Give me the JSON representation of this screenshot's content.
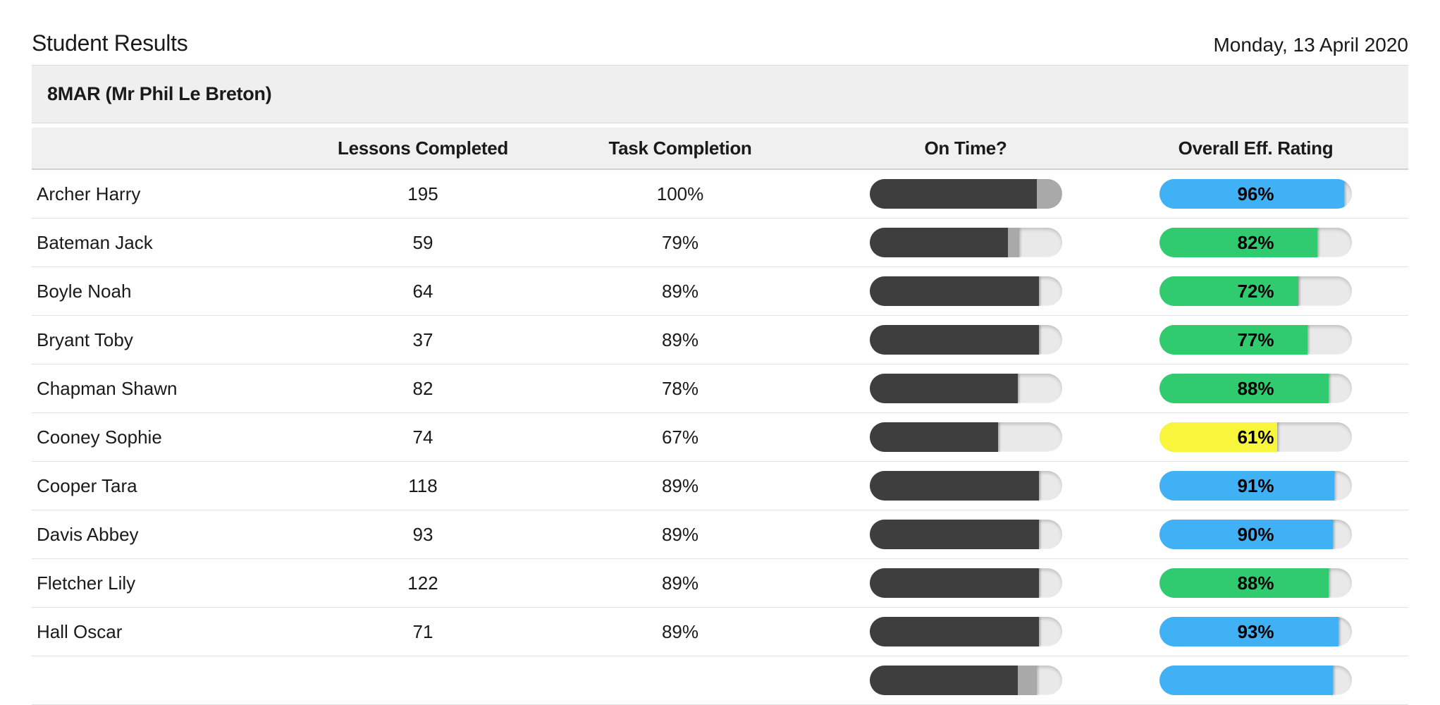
{
  "page": {
    "title": "Student Results",
    "date": "Monday, 13 April 2020"
  },
  "group_header": "8MAR (Mr Phil Le Breton)",
  "table": {
    "columns": {
      "name": "",
      "lessons": "Lessons Completed",
      "task": "Task Completion",
      "on_time": "On Time?",
      "rating": "Overall Eff. Rating"
    },
    "rows": [
      {
        "name": "Archer Harry",
        "lessons": "195",
        "task": "100%",
        "on_time": {
          "dark_pct": 87,
          "late_pct": 13
        },
        "rating": {
          "value": 96,
          "label": "96%",
          "color": "blue"
        }
      },
      {
        "name": "Bateman Jack",
        "lessons": "59",
        "task": "79%",
        "on_time": {
          "dark_pct": 72,
          "late_pct": 6
        },
        "rating": {
          "value": 82,
          "label": "82%",
          "color": "green"
        }
      },
      {
        "name": "Boyle Noah",
        "lessons": "64",
        "task": "89%",
        "on_time": {
          "dark_pct": 88,
          "late_pct": 0
        },
        "rating": {
          "value": 72,
          "label": "72%",
          "color": "green"
        }
      },
      {
        "name": "Bryant Toby",
        "lessons": "37",
        "task": "89%",
        "on_time": {
          "dark_pct": 88,
          "late_pct": 0
        },
        "rating": {
          "value": 77,
          "label": "77%",
          "color": "green"
        }
      },
      {
        "name": "Chapman Shawn",
        "lessons": "82",
        "task": "78%",
        "on_time": {
          "dark_pct": 77,
          "late_pct": 0
        },
        "rating": {
          "value": 88,
          "label": "88%",
          "color": "green"
        }
      },
      {
        "name": "Cooney Sophie",
        "lessons": "74",
        "task": "67%",
        "on_time": {
          "dark_pct": 67,
          "late_pct": 0
        },
        "rating": {
          "value": 61,
          "label": "61%",
          "color": "yellow"
        }
      },
      {
        "name": "Cooper Tara",
        "lessons": "118",
        "task": "89%",
        "on_time": {
          "dark_pct": 88,
          "late_pct": 0
        },
        "rating": {
          "value": 91,
          "label": "91%",
          "color": "blue"
        }
      },
      {
        "name": "Davis Abbey",
        "lessons": "93",
        "task": "89%",
        "on_time": {
          "dark_pct": 88,
          "late_pct": 0
        },
        "rating": {
          "value": 90,
          "label": "90%",
          "color": "blue"
        }
      },
      {
        "name": "Fletcher Lily",
        "lessons": "122",
        "task": "89%",
        "on_time": {
          "dark_pct": 88,
          "late_pct": 0
        },
        "rating": {
          "value": 88,
          "label": "88%",
          "color": "green"
        }
      },
      {
        "name": "Hall Oscar",
        "lessons": "71",
        "task": "89%",
        "on_time": {
          "dark_pct": 88,
          "late_pct": 0
        },
        "rating": {
          "value": 93,
          "label": "93%",
          "color": "blue"
        }
      },
      {
        "name": "",
        "lessons": "",
        "task": "",
        "on_time": {
          "dark_pct": 77,
          "late_pct": 10
        },
        "rating": {
          "value": 90,
          "label": "",
          "color": "blue"
        }
      }
    ]
  },
  "colors": {
    "rating_blue": "#41b1f6",
    "rating_green": "#2fcb6e",
    "rating_yellow": "#f8f53d",
    "on_time_dark": "#3e3e3e",
    "on_time_late_gray": "#a9a9a9",
    "bar_track_gray": "#e9e9e9"
  }
}
